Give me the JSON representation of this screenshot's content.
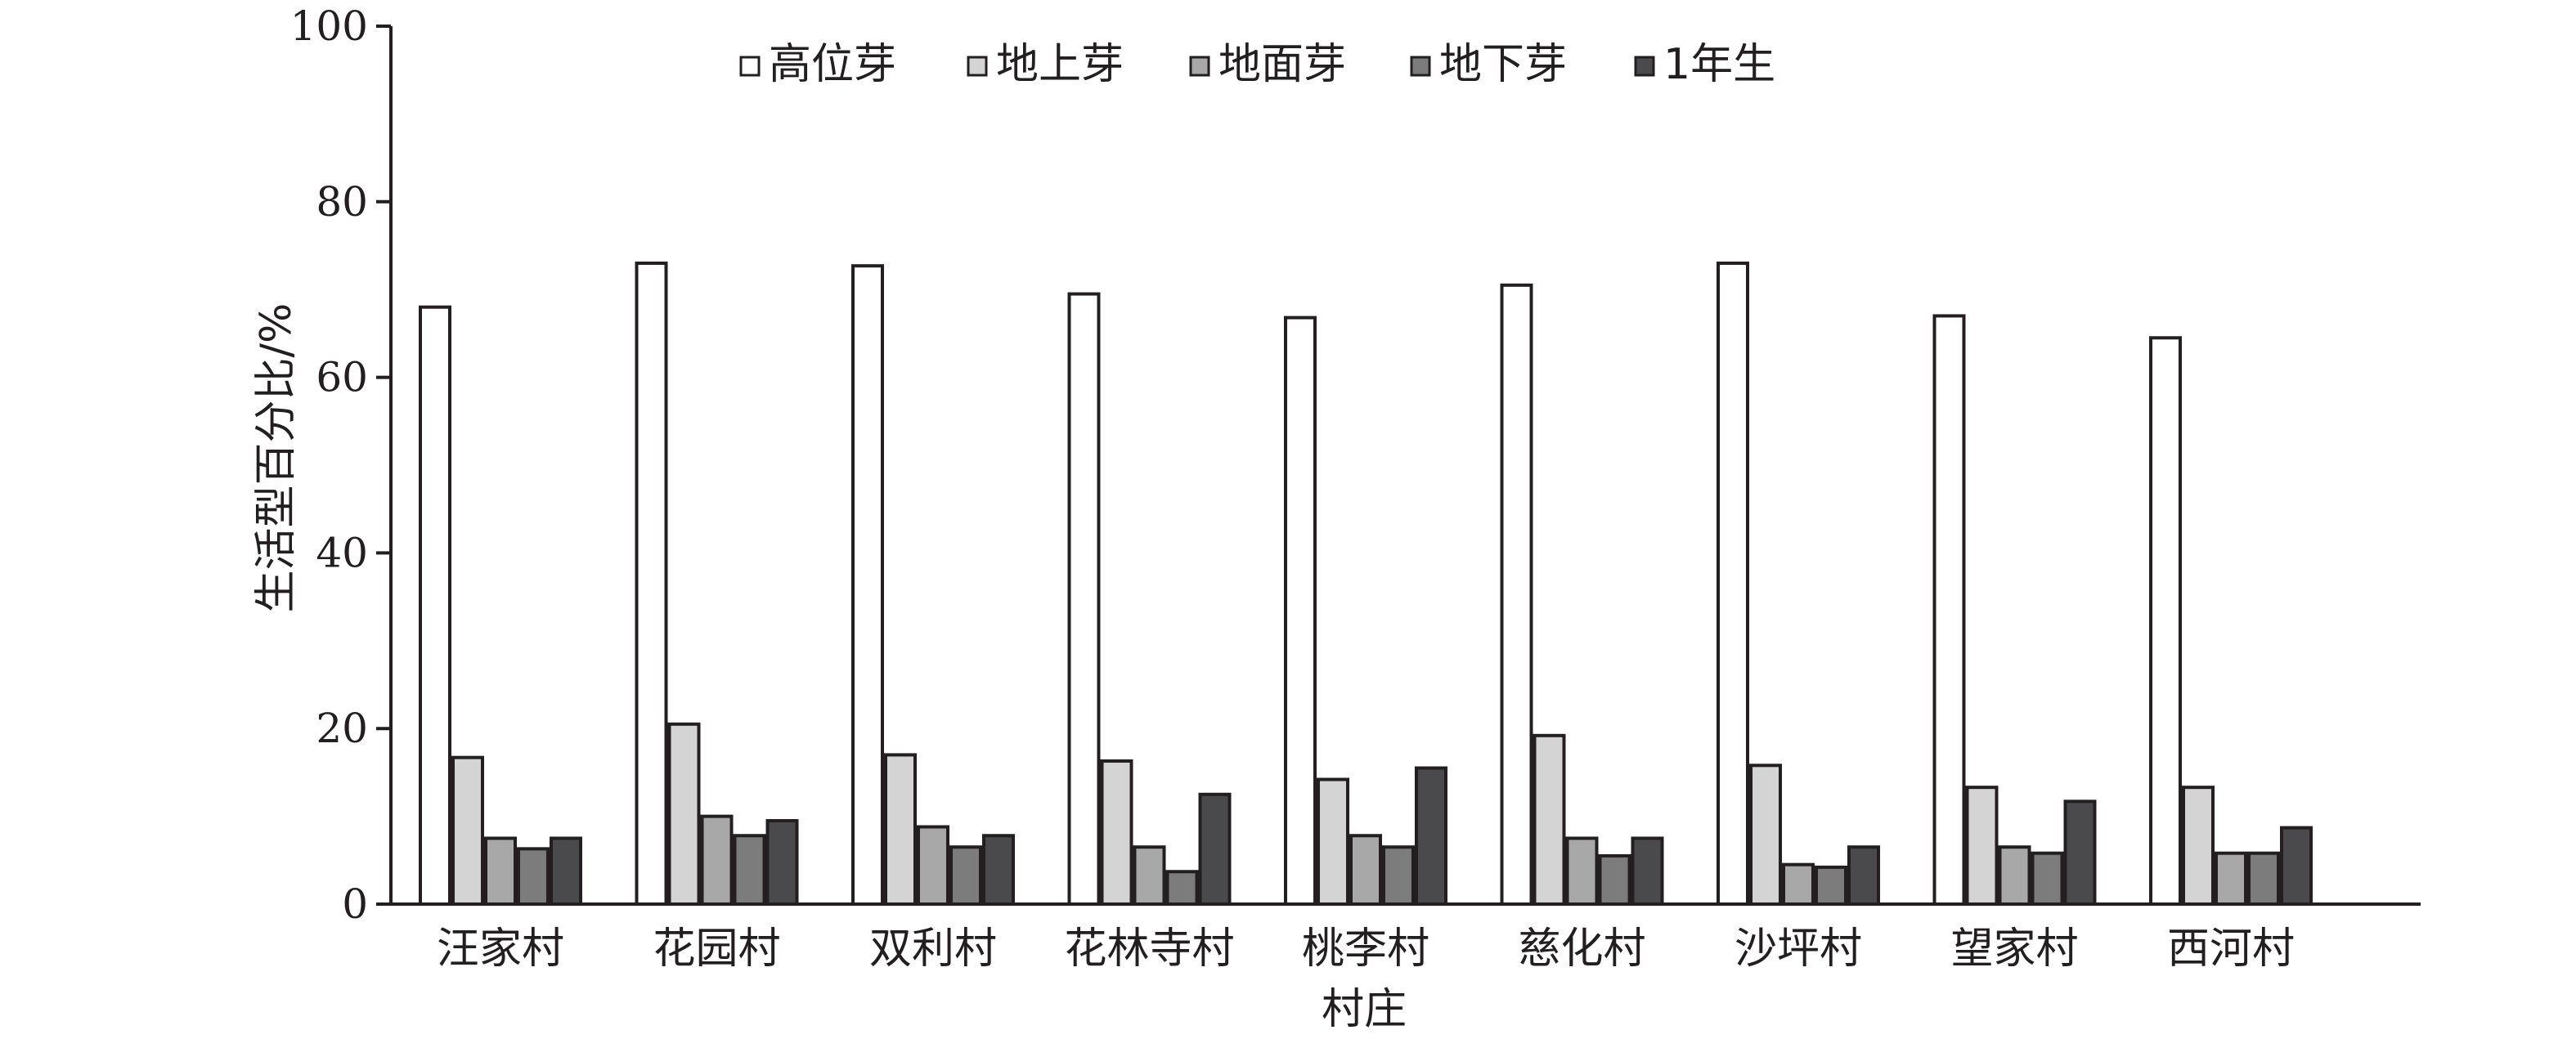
{
  "chart_data": {
    "type": "bar",
    "xlabel": "村庄",
    "ylabel": "生活型百分比/%",
    "ylim": [
      0,
      100
    ],
    "yticks": [
      0,
      20,
      40,
      60,
      80,
      100
    ],
    "legend_position": "top-center",
    "grid": false,
    "categories": [
      "汪家村",
      "花园村",
      "双利村",
      "花林寺村",
      "桃李村",
      "慈化村",
      "沙坪村",
      "望家村",
      "西河村"
    ],
    "series": [
      {
        "name": "高位芽",
        "color": "#ffffff",
        "values": [
          68,
          73,
          72.7,
          69.5,
          66.8,
          70.5,
          73,
          67,
          64.5
        ]
      },
      {
        "name": "地上芽",
        "color": "#d4d4d4",
        "values": [
          16.7,
          20.5,
          17,
          16.3,
          14.2,
          19.2,
          15.8,
          13.3,
          13.3
        ]
      },
      {
        "name": "地面芽",
        "color": "#a8a8a8",
        "values": [
          7.5,
          10,
          8.8,
          6.5,
          7.8,
          7.5,
          4.5,
          6.5,
          5.8
        ]
      },
      {
        "name": "地下芽",
        "color": "#7c7c7c",
        "values": [
          6.3,
          7.8,
          6.5,
          3.7,
          6.5,
          5.5,
          4.2,
          5.8,
          5.8
        ]
      },
      {
        "name": "1年生",
        "color": "#4a4a4c",
        "values": [
          7.5,
          9.5,
          7.8,
          12.5,
          15.5,
          7.5,
          6.5,
          11.7,
          8.7
        ]
      }
    ]
  }
}
